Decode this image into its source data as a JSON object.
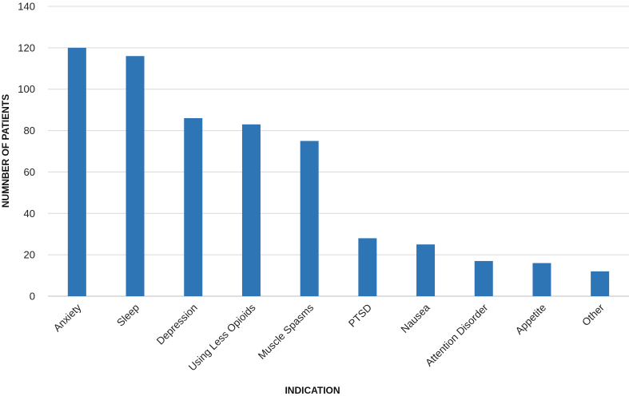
{
  "chart_data": {
    "type": "bar",
    "categories": [
      "Anxiety",
      "Sleep",
      "Depression",
      "Using Less Opioids",
      "Muscle Spasms",
      "PTSD",
      "Nausea",
      "Attention Disorder",
      "Appetite",
      "Other"
    ],
    "values": [
      120,
      116,
      86,
      83,
      75,
      28,
      25,
      17,
      16,
      12
    ],
    "xlabel": "INDICATION",
    "ylabel": "NUMNBER OF PATIENTS",
    "ylim": [
      0,
      140
    ],
    "yticks": [
      "0",
      "20",
      "40",
      "60",
      "80",
      "100",
      "120",
      "140"
    ],
    "grid": "horizontal",
    "bar_color": "#2e75b6"
  }
}
